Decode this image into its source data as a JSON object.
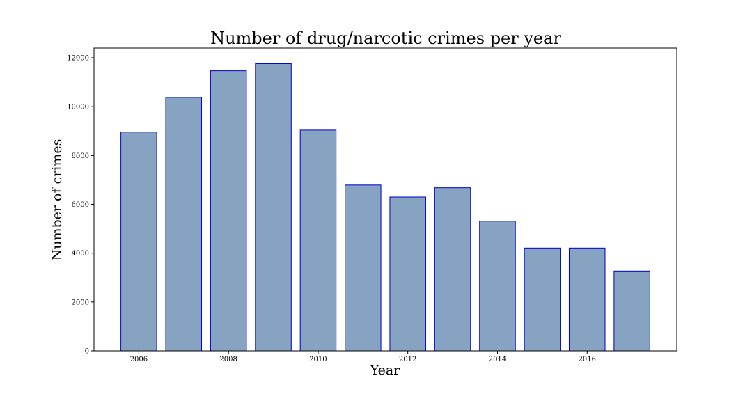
{
  "chart_data": {
    "type": "bar",
    "title": "Number of drug/narcotic crimes per year",
    "xlabel": "Year",
    "ylabel": "Number of crimes",
    "categories": [
      2006,
      2007,
      2008,
      2009,
      2010,
      2011,
      2012,
      2013,
      2014,
      2015,
      2016,
      2017
    ],
    "values": [
      8960,
      10380,
      11470,
      11760,
      9040,
      6790,
      6300,
      6680,
      5310,
      4210,
      4210,
      3270
    ],
    "xlim": [
      2005,
      2018
    ],
    "xticks": [
      "2006",
      "2008",
      "2010",
      "2012",
      "2014",
      "2016"
    ],
    "ylim": [
      0,
      12400
    ],
    "yticks": [
      "0",
      "2000",
      "4000",
      "6000",
      "8000",
      "10000",
      "12000"
    ],
    "grid": false,
    "colors": {
      "bar_fill": "#87a3c2",
      "bar_edge": "#0000cc"
    }
  }
}
